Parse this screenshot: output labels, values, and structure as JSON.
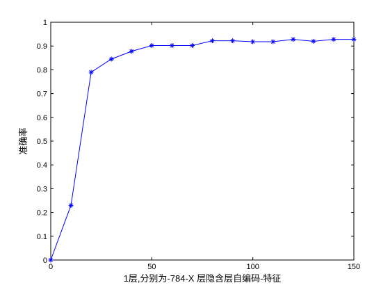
{
  "chart_data": {
    "type": "line",
    "title": "",
    "xlabel": "1层,分别为-784-X 层隐含层自编码-特征",
    "ylabel": "准确率",
    "xlim": [
      0,
      150
    ],
    "ylim": [
      0,
      1
    ],
    "xticks": [
      0,
      50,
      100,
      150
    ],
    "yticks": [
      0,
      0.1,
      0.2,
      0.3,
      0.4,
      0.5,
      0.6,
      0.7,
      0.8,
      0.9,
      1
    ],
    "grid": false,
    "marker": "star",
    "series": [
      {
        "name": "",
        "color": "#0000ff",
        "x": [
          0,
          10,
          20,
          30,
          40,
          50,
          60,
          70,
          80,
          90,
          100,
          110,
          120,
          130,
          140,
          150
        ],
        "y": [
          0.0,
          0.23,
          0.79,
          0.845,
          0.878,
          0.902,
          0.902,
          0.902,
          0.922,
          0.922,
          0.918,
          0.918,
          0.928,
          0.92,
          0.928,
          0.928
        ]
      }
    ]
  }
}
